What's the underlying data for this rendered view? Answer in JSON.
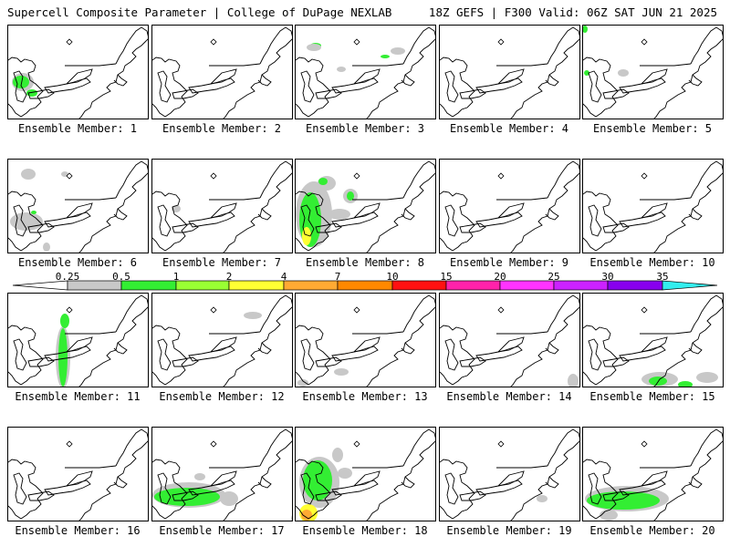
{
  "header": {
    "left": "Supercell Composite Parameter | College of DuPage NEXLAB",
    "right": "18Z GEFS | F300 Valid: 06Z SAT JUN 21 2025"
  },
  "panels": [
    {
      "label": "Ensemble Member: 1"
    },
    {
      "label": "Ensemble Member: 2"
    },
    {
      "label": "Ensemble Member: 3"
    },
    {
      "label": "Ensemble Member: 4"
    },
    {
      "label": "Ensemble Member: 5"
    },
    {
      "label": "Ensemble Member: 6"
    },
    {
      "label": "Ensemble Member: 7"
    },
    {
      "label": "Ensemble Member: 8"
    },
    {
      "label": "Ensemble Member: 9"
    },
    {
      "label": "Ensemble Member: 10"
    },
    {
      "label": "Ensemble Member: 11"
    },
    {
      "label": "Ensemble Member: 12"
    },
    {
      "label": "Ensemble Member: 13"
    },
    {
      "label": "Ensemble Member: 14"
    },
    {
      "label": "Ensemble Member: 15"
    },
    {
      "label": "Ensemble Member: 16"
    },
    {
      "label": "Ensemble Member: 17"
    },
    {
      "label": "Ensemble Member: 18"
    },
    {
      "label": "Ensemble Member: 19"
    },
    {
      "label": "Ensemble Member: 20"
    }
  ],
  "colorbar": {
    "ticks": [
      "0.25",
      "0.5",
      "1",
      "2",
      "4",
      "7",
      "10",
      "15",
      "20",
      "25",
      "30",
      "35"
    ],
    "colors": [
      "#c8c8c8",
      "#33ee33",
      "#99ff33",
      "#ffff33",
      "#ffaa33",
      "#ff8800",
      "#ff1111",
      "#ff22aa",
      "#ff33ff",
      "#cc22ff",
      "#8800ee",
      "#bb66ee",
      "#33eeee"
    ],
    "below_color": "#ffffff"
  }
}
